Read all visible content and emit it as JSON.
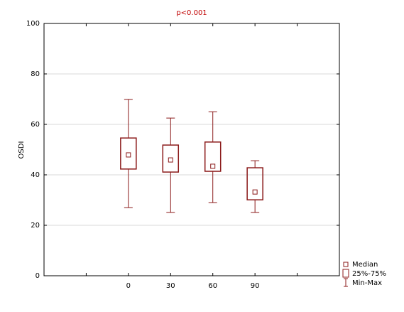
{
  "chart_data": {
    "type": "box",
    "title": "p<0.001",
    "y_label": "OSDI",
    "categories": [
      "0",
      "30",
      "60",
      "90"
    ],
    "min": [
      27,
      25.1,
      29,
      25.1
    ],
    "q1": [
      42.3,
      41.1,
      41.4,
      30.1
    ],
    "median": [
      47.9,
      45.9,
      43.4,
      33.2
    ],
    "q3": [
      54.6,
      51.8,
      53,
      42.8
    ],
    "max": [
      69.9,
      62.5,
      65,
      45.6
    ],
    "color": "#8b1a1a",
    "ylim": [
      0,
      100
    ],
    "yticks": [
      0,
      20,
      40,
      60,
      80,
      100
    ],
    "grid": true,
    "legend": {
      "median": "Median",
      "box": "25%-75%",
      "whisker": "Min-Max"
    },
    "legend_position": "bottom-right"
  }
}
